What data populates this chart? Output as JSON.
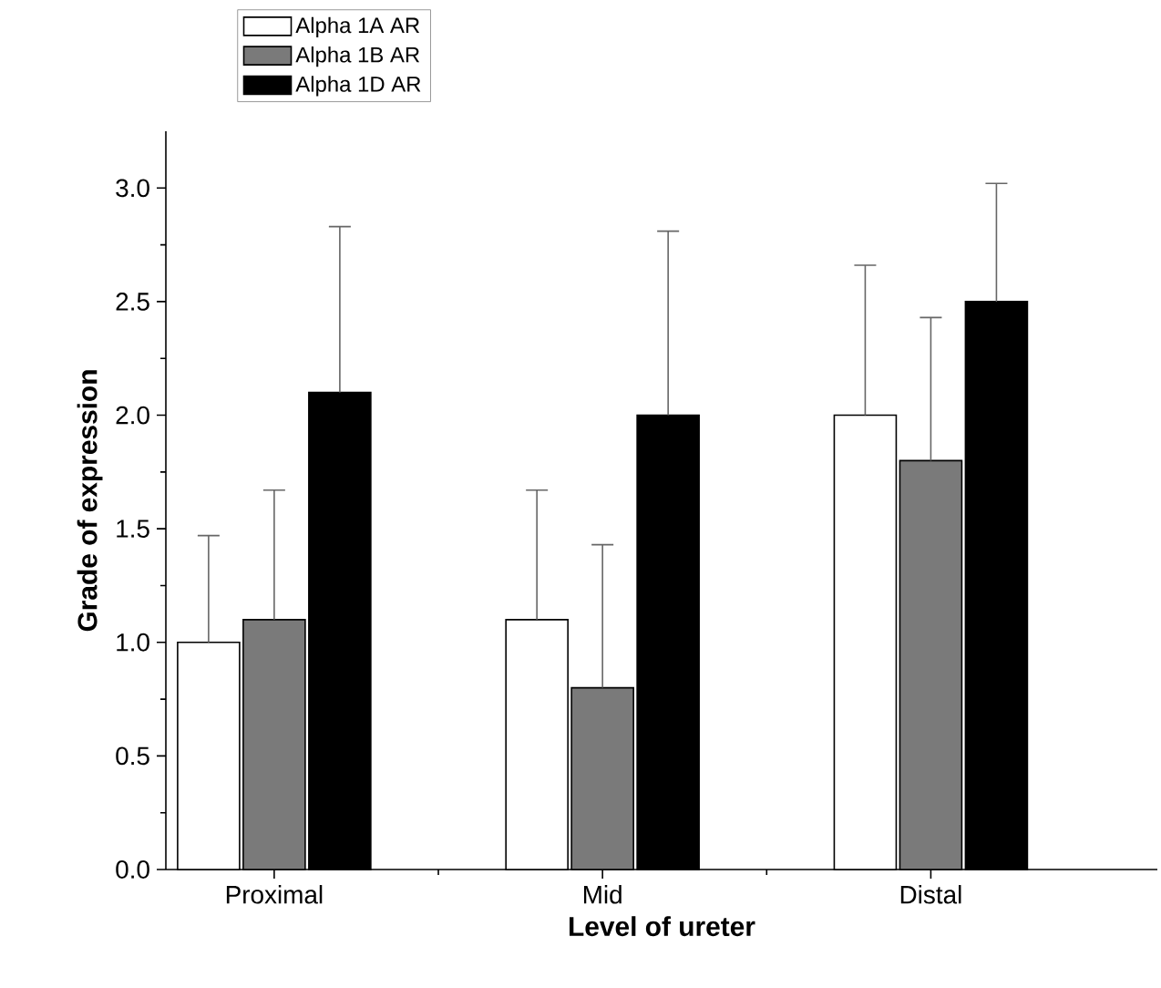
{
  "chart_data": {
    "type": "bar",
    "xlabel": "Level of ureter",
    "ylabel": "Grade of expression",
    "categories": [
      "Proximal",
      "Mid",
      "Distal"
    ],
    "series": [
      {
        "name": "Alpha 1A AR",
        "color": "#ffffff",
        "values": [
          1.0,
          1.1,
          2.0
        ],
        "errors": [
          [
            1.0,
            1.47
          ],
          [
            1.1,
            1.67
          ],
          [
            2.0,
            2.66
          ]
        ]
      },
      {
        "name": "Alpha 1B AR",
        "color": "#7a7a7a",
        "values": [
          1.1,
          0.8,
          1.8
        ],
        "errors": [
          [
            1.1,
            1.67
          ],
          [
            0.8,
            1.43
          ],
          [
            1.8,
            2.43
          ]
        ]
      },
      {
        "name": "Alpha 1D AR",
        "color": "#000000",
        "values": [
          2.1,
          2.0,
          2.5
        ],
        "errors": [
          [
            2.1,
            2.83
          ],
          [
            2.0,
            2.81
          ],
          [
            2.5,
            3.02
          ]
        ]
      }
    ],
    "ylim": [
      0,
      3.25
    ],
    "yticks": [
      {
        "value": 0,
        "label": "0.0"
      },
      0.5,
      {
        "value": 1,
        "label": "1.0"
      },
      1.5,
      {
        "value": 2,
        "label": "2.0"
      },
      2.5,
      {
        "value": 3,
        "label": "3.0"
      }
    ],
    "grid": false,
    "legend": "top left"
  }
}
